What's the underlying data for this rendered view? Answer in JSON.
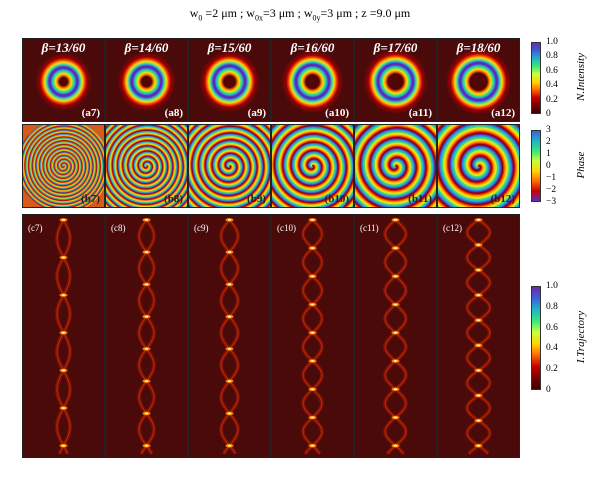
{
  "title": {
    "w0": "w",
    "w0_sub": "0",
    "w0_val": " =2 μm ; ",
    "w0x": "w",
    "w0x_sub": "0x",
    "w0x_val": "=3 μm ; ",
    "w0y": "w",
    "w0y_sub": "0y",
    "w0y_val": "=3 μm ; z =9.0 μm"
  },
  "columns": [
    {
      "beta_sym": "β",
      "beta_val": "=13/60",
      "a": "(a7)",
      "b": "(b7)",
      "c": "(c7)",
      "ring": 0.5
    },
    {
      "beta_sym": "β",
      "beta_val": "=14/60",
      "a": "(a8)",
      "b": "(b8)",
      "c": "(c8)",
      "ring": 0.58
    },
    {
      "beta_sym": "β",
      "beta_val": "=15/60",
      "a": "(a9)",
      "b": "(b9)",
      "c": "(c9)",
      "ring": 0.66
    },
    {
      "beta_sym": "β",
      "beta_val": "=16/60",
      "a": "(a10)",
      "b": "(b10)",
      "c": "(c10)",
      "ring": 0.74
    },
    {
      "beta_sym": "β",
      "beta_val": "=17/60",
      "a": "(a11)",
      "b": "(b11)",
      "c": "(c11)",
      "ring": 0.82
    },
    {
      "beta_sym": "β",
      "beta_val": "=18/60",
      "a": "(a12)",
      "b": "(b12)",
      "c": "(c12)",
      "ring": 0.9
    }
  ],
  "colorbars": {
    "intensity": {
      "label": "N.Intensity",
      "ticks": [
        "1.0",
        "0.8",
        "0.6",
        "0.4",
        "0.2",
        "0"
      ]
    },
    "phase": {
      "label": "Phase",
      "ticks": [
        "3",
        "2",
        "1",
        "0",
        "−1",
        "−2",
        "−3"
      ]
    },
    "trajectory": {
      "label": "I.Trajectory",
      "ticks": [
        "1.0",
        "0.8",
        "0.6",
        "0.4",
        "0.2",
        "0"
      ]
    }
  },
  "colors": {
    "background": "#4a0a0a",
    "colormap": [
      "#3b0000",
      "#7a0000",
      "#c80000",
      "#ff6a00",
      "#ffd400",
      "#c8ff3c",
      "#3ce678",
      "#1fb4c8",
      "#3b5fd8",
      "#6a2ca8"
    ]
  }
}
